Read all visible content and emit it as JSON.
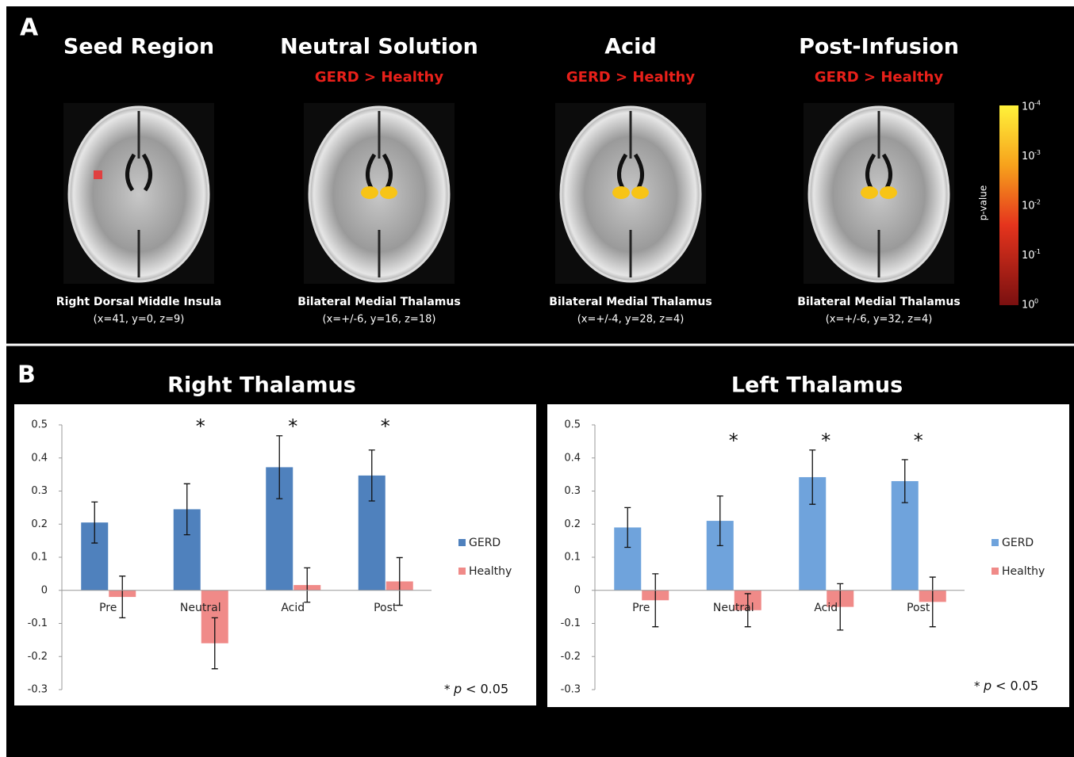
{
  "panel_a": {
    "label": "A",
    "columns": [
      {
        "title": "Seed Region",
        "caption": "Right Dorsal Middle Insula",
        "coords": "(x=41, y=0, z=9)"
      },
      {
        "title": "Neutral Solution",
        "contrast": "GERD > Healthy",
        "caption": "Bilateral Medial Thalamus",
        "coords": "(x=+/-6, y=16, z=18)"
      },
      {
        "title": "Acid",
        "contrast": "GERD > Healthy",
        "caption": "Bilateral Medial Thalamus",
        "coords": "(x=+/-4, y=28, z=4)"
      },
      {
        "title": "Post-Infusion",
        "contrast": "GERD > Healthy",
        "caption": "Bilateral Medial Thalamus",
        "coords": "(x=+/-6, y=32, z=4)"
      }
    ],
    "colorbar": {
      "title": "p-value",
      "labels": [
        {
          "base": "10",
          "exp": "-4"
        },
        {
          "base": "10",
          "exp": "-3"
        },
        {
          "base": "10",
          "exp": "-2"
        },
        {
          "base": "10",
          "exp": "-1"
        },
        {
          "base": "10",
          "exp": "0"
        }
      ]
    }
  },
  "panel_b_label": "B",
  "chart_data": [
    {
      "type": "bar",
      "title": "Right Thalamus",
      "categories": [
        "Pre",
        "Neutral",
        "Acid",
        "Post"
      ],
      "series": [
        {
          "name": "GERD",
          "color": "#4f81bd",
          "values": [
            0.205,
            0.245,
            0.372,
            0.347
          ],
          "errors": [
            0.062,
            0.077,
            0.095,
            0.077
          ]
        },
        {
          "name": "Healthy",
          "color": "#f08a88",
          "values": [
            -0.02,
            -0.16,
            0.016,
            0.027
          ],
          "errors": [
            0.063,
            0.077,
            0.052,
            0.072
          ]
        }
      ],
      "annotations": [
        null,
        "*",
        "*",
        "*"
      ],
      "note": {
        "star": "*",
        "p": "p",
        "rest": "< 0.05"
      },
      "ylim": [
        -0.3,
        0.5
      ],
      "yticks": [
        0.5,
        0.4,
        0.3,
        0.2,
        0.1,
        0,
        -0.1,
        -0.2,
        -0.3
      ],
      "legend": "right"
    },
    {
      "type": "bar",
      "title": "Left Thalamus",
      "categories": [
        "Pre",
        "Neutral",
        "Acid",
        "Post"
      ],
      "series": [
        {
          "name": "GERD",
          "color": "#6fa3dc",
          "values": [
            0.19,
            0.21,
            0.342,
            0.33
          ],
          "errors": [
            0.06,
            0.075,
            0.082,
            0.065
          ]
        },
        {
          "name": "Healthy",
          "color": "#f08a88",
          "values": [
            -0.03,
            -0.06,
            -0.05,
            -0.035
          ],
          "errors": [
            0.08,
            0.05,
            0.07,
            0.075
          ]
        }
      ],
      "annotations": [
        null,
        "*",
        "*",
        "*"
      ],
      "note": {
        "star": "*",
        "p": "p",
        "rest": "< 0.05"
      },
      "ylim": [
        -0.3,
        0.5
      ],
      "yticks": [
        0.5,
        0.4,
        0.3,
        0.2,
        0.1,
        0,
        -0.1,
        -0.2,
        -0.3
      ],
      "legend": "right"
    }
  ]
}
